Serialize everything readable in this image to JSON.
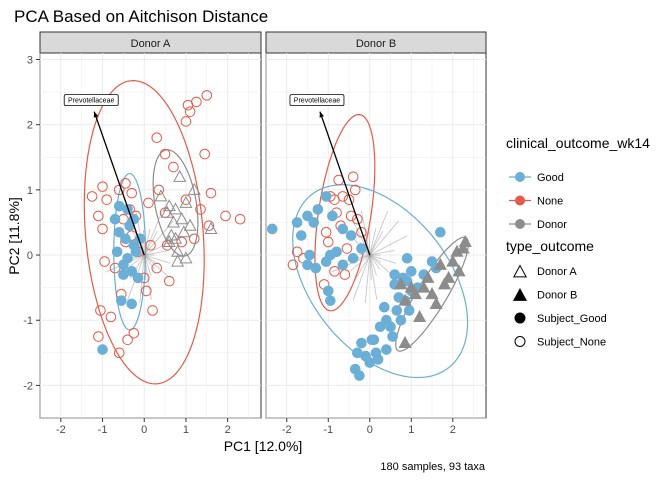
{
  "chart_data": {
    "type": "scatter",
    "title": "PCA Based on Aitchison Distance",
    "xlabel": "PC1 [12.0%]",
    "ylabel": "PC2 [11.8%]",
    "caption": "180 samples, 93 taxa",
    "xlim": [
      -2.5,
      2.8
    ],
    "ylim": [
      -2.5,
      3.1
    ],
    "x_ticks": [
      -2,
      -1,
      0,
      1,
      2
    ],
    "y_ticks": [
      -2,
      -1,
      0,
      1,
      2,
      3
    ],
    "x_tick_labels": [
      "-2",
      "-1",
      "0",
      "1",
      "2"
    ],
    "y_tick_labels": [
      "-2",
      "-1",
      "0",
      "1",
      "2",
      "3"
    ],
    "grid": true,
    "legend": {
      "placement": "right",
      "color_title": "clinical_outcome_wk14",
      "color_entries": [
        {
          "label": "Good",
          "color": "#6baed6"
        },
        {
          "label": "None",
          "color": "#e45a4a"
        },
        {
          "label": "Donor",
          "color": "#8c8c8c"
        }
      ],
      "shape_title": "type_outcome",
      "shape_entries": [
        {
          "label": "Donor A",
          "shape": "triangle-open"
        },
        {
          "label": "Donor B",
          "shape": "triangle-filled"
        },
        {
          "label": "Subject_Good",
          "shape": "circle-filled"
        },
        {
          "label": "Subject_None",
          "shape": "circle-open"
        }
      ]
    },
    "colors": {
      "Good": "#6baed6",
      "None": "#e45a4a",
      "Donor": "#8c8c8c"
    },
    "panels": [
      {
        "facet": "Donor A",
        "arrow_label": "Prevotellaceae",
        "arrow": {
          "from": [
            0,
            0
          ],
          "to": [
            -1.2,
            2.2
          ]
        },
        "ellipses": [
          {
            "group": "None",
            "cx": 0.0,
            "cy": 0.35,
            "rx": 2.35,
            "ry": 1.4,
            "angle": 100
          },
          {
            "group": "Good",
            "cx": -0.35,
            "cy": 0.05,
            "rx": 1.2,
            "ry": 0.38,
            "angle": 90
          },
          {
            "group": "Donor",
            "cx": 0.75,
            "cy": 0.8,
            "rx": 0.85,
            "ry": 0.48,
            "angle": 110
          }
        ],
        "none_points": [
          [
            -1.25,
            0.9
          ],
          [
            -1.1,
            0.6
          ],
          [
            -1.0,
            1.05
          ],
          [
            -0.9,
            0.85
          ],
          [
            -1.0,
            0.4
          ],
          [
            -0.95,
            -0.1
          ],
          [
            -1.05,
            -0.85
          ],
          [
            -1.1,
            -1.25
          ],
          [
            -0.8,
            -0.95
          ],
          [
            -0.7,
            -0.2
          ],
          [
            -0.6,
            1.0
          ],
          [
            -0.45,
            1.1
          ],
          [
            -0.3,
            0.95
          ],
          [
            -0.35,
            0.7
          ],
          [
            -0.5,
            0.55
          ],
          [
            -0.2,
            0.6
          ],
          [
            -0.55,
            -0.6
          ],
          [
            -0.6,
            -1.5
          ],
          [
            -0.4,
            -1.3
          ],
          [
            -0.25,
            -1.2
          ],
          [
            -0.3,
            0.3
          ],
          [
            0.1,
            0.8
          ],
          [
            0.05,
            -0.55
          ],
          [
            0.2,
            -0.85
          ],
          [
            0.3,
            -0.2
          ],
          [
            0.35,
            1.0
          ],
          [
            0.5,
            0.65
          ],
          [
            0.55,
            0.15
          ],
          [
            0.6,
            -0.4
          ],
          [
            0.7,
            1.35
          ],
          [
            0.5,
            1.55
          ],
          [
            0.3,
            1.8
          ],
          [
            1.0,
            2.05
          ],
          [
            1.05,
            2.3
          ],
          [
            1.1,
            2.2
          ],
          [
            1.25,
            2.35
          ],
          [
            1.5,
            2.45
          ],
          [
            1.0,
            0.85
          ],
          [
            1.2,
            0.25
          ],
          [
            1.35,
            0.7
          ],
          [
            1.6,
            0.95
          ],
          [
            1.55,
            0.45
          ],
          [
            2.3,
            0.55
          ],
          [
            0.9,
            0.2
          ],
          [
            0.15,
            0.15
          ],
          [
            -0.15,
            0.05
          ],
          [
            0.0,
            -0.35
          ],
          [
            -0.45,
            0.2
          ],
          [
            1.45,
            1.55
          ],
          [
            1.95,
            0.6
          ]
        ],
        "good_points": [
          [
            -1.0,
            -1.45
          ],
          [
            -0.55,
            -0.7
          ],
          [
            -0.5,
            -0.3
          ],
          [
            -0.4,
            -0.05
          ],
          [
            -0.45,
            0.25
          ],
          [
            -0.35,
            0.45
          ],
          [
            -0.6,
            0.35
          ],
          [
            -0.65,
            0.05
          ],
          [
            -0.3,
            -0.25
          ],
          [
            -0.2,
            0.05
          ],
          [
            -0.15,
            -0.35
          ],
          [
            -0.5,
            -0.15
          ],
          [
            -0.4,
            0.7
          ],
          [
            -0.25,
            0.55
          ],
          [
            -0.6,
            0.75
          ],
          [
            -0.7,
            0.55
          ],
          [
            -0.3,
            -0.75
          ],
          [
            -0.1,
            0.25
          ],
          [
            -0.25,
            0.15
          ]
        ],
        "donor_points": [
          [
            0.4,
            0.9
          ],
          [
            0.55,
            0.65
          ],
          [
            0.6,
            0.75
          ],
          [
            0.7,
            0.5
          ],
          [
            0.65,
            0.3
          ],
          [
            0.75,
            0.25
          ],
          [
            0.8,
            0.05
          ],
          [
            0.9,
            0.55
          ],
          [
            1.0,
            0.8
          ],
          [
            0.95,
            0.35
          ],
          [
            0.75,
            0.7
          ],
          [
            1.1,
            0.45
          ],
          [
            0.85,
            1.2
          ],
          [
            1.2,
            1.0
          ],
          [
            0.6,
            0.2
          ],
          [
            0.8,
            -0.1
          ],
          [
            1.0,
            -0.05
          ],
          [
            1.6,
            0.4
          ]
        ],
        "donor_filled": false
      },
      {
        "facet": "Donor B",
        "arrow_label": "Prevotellaceae",
        "arrow": {
          "from": [
            0,
            0
          ],
          "to": [
            -1.2,
            2.2
          ]
        },
        "ellipses": [
          {
            "group": "None",
            "cx": -0.6,
            "cy": 0.65,
            "rx": 1.55,
            "ry": 0.62,
            "angle": 75
          },
          {
            "group": "Good",
            "cx": 0.25,
            "cy": -0.4,
            "rx": 2.25,
            "ry": 1.25,
            "angle": -25
          },
          {
            "group": "Donor",
            "cx": 1.5,
            "cy": -0.6,
            "rx": 1.2,
            "ry": 0.3,
            "angle": 45
          }
        ],
        "none_points": [
          [
            -0.95,
            0.9
          ],
          [
            -0.85,
            0.85
          ],
          [
            -0.8,
            0.65
          ],
          [
            -0.75,
            1.15
          ],
          [
            -0.65,
            0.9
          ],
          [
            -0.5,
            0.85
          ],
          [
            -0.45,
            0.6
          ],
          [
            -0.4,
            1.2
          ],
          [
            -0.3,
            0.55
          ],
          [
            -0.35,
            1.0
          ],
          [
            -1.85,
            -0.15
          ],
          [
            -1.75,
            0.05
          ],
          [
            -1.6,
            -0.05
          ],
          [
            -1.1,
            -0.45
          ],
          [
            -1.05,
            0.35
          ],
          [
            -0.85,
            -0.25
          ],
          [
            -0.6,
            -0.3
          ],
          [
            -0.2,
            0.35
          ],
          [
            -1.0,
            0.2
          ],
          [
            -0.55,
            0.1
          ],
          [
            -0.7,
            0.45
          ]
        ],
        "good_points": [
          [
            -2.35,
            0.4
          ],
          [
            -1.65,
            0.3
          ],
          [
            -1.75,
            0.5
          ],
          [
            -1.5,
            0.6
          ],
          [
            -1.35,
            0.5
          ],
          [
            -1.25,
            0.7
          ],
          [
            -1.05,
            0.9
          ],
          [
            -0.9,
            0.6
          ],
          [
            -0.65,
            0.4
          ],
          [
            -0.45,
            0.3
          ],
          [
            -0.95,
            0.0
          ],
          [
            -1.45,
            0.0
          ],
          [
            -1.5,
            -0.15
          ],
          [
            -1.3,
            -0.2
          ],
          [
            -1.05,
            -0.1
          ],
          [
            -0.8,
            0.05
          ],
          [
            -0.65,
            -0.15
          ],
          [
            -0.4,
            -0.05
          ],
          [
            -0.2,
            0.1
          ],
          [
            -1.0,
            -0.55
          ],
          [
            -0.95,
            -0.7
          ],
          [
            0.9,
            -0.05
          ],
          [
            1.0,
            -0.25
          ],
          [
            0.8,
            -0.35
          ],
          [
            0.6,
            -0.45
          ],
          [
            0.7,
            -0.65
          ],
          [
            0.85,
            -0.7
          ],
          [
            0.65,
            -0.85
          ],
          [
            0.4,
            -1.0
          ],
          [
            0.35,
            -0.8
          ],
          [
            0.25,
            -1.1
          ],
          [
            0.05,
            -1.3
          ],
          [
            -0.2,
            -1.35
          ],
          [
            -0.3,
            -1.5
          ],
          [
            0.2,
            -1.6
          ],
          [
            -0.1,
            -1.55
          ],
          [
            -0.35,
            -1.75
          ],
          [
            -0.25,
            -1.85
          ],
          [
            0.1,
            -1.3
          ],
          [
            0.9,
            -0.4
          ],
          [
            1.0,
            -0.55
          ],
          [
            1.15,
            -0.5
          ],
          [
            1.3,
            -0.3
          ],
          [
            1.5,
            -0.1
          ],
          [
            1.6,
            -0.2
          ],
          [
            1.7,
            0.35
          ],
          [
            0.75,
            -1.0
          ],
          [
            0.55,
            -1.25
          ],
          [
            0.4,
            -1.45
          ],
          [
            0.15,
            -1.5
          ],
          [
            0.6,
            -0.3
          ],
          [
            0.95,
            -0.85
          ],
          [
            0.5,
            -1.1
          ],
          [
            0.0,
            -1.65
          ]
        ],
        "donor_points": [
          [
            0.75,
            -0.45
          ],
          [
            0.85,
            -0.7
          ],
          [
            1.0,
            -0.5
          ],
          [
            1.1,
            -0.6
          ],
          [
            1.2,
            -0.95
          ],
          [
            1.3,
            -0.5
          ],
          [
            1.4,
            -0.35
          ],
          [
            1.5,
            -0.6
          ],
          [
            1.6,
            -0.75
          ],
          [
            1.7,
            -0.15
          ],
          [
            1.8,
            -0.45
          ],
          [
            1.9,
            -0.35
          ],
          [
            2.0,
            -0.1
          ],
          [
            2.1,
            0.05
          ],
          [
            2.15,
            -0.25
          ],
          [
            2.25,
            0.1
          ],
          [
            2.3,
            0.2
          ],
          [
            0.85,
            -1.35
          ]
        ],
        "donor_filled": true
      }
    ]
  }
}
